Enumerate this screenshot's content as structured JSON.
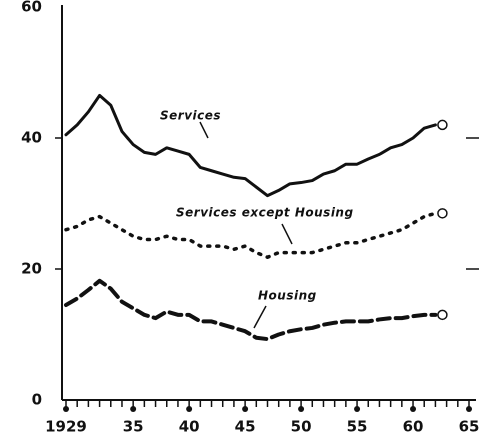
{
  "chart_data": {
    "type": "line",
    "x": [
      1929,
      1930,
      1931,
      1932,
      1933,
      1934,
      1935,
      1936,
      1937,
      1938,
      1939,
      1940,
      1941,
      1942,
      1943,
      1944,
      1945,
      1946,
      1947,
      1948,
      1949,
      1950,
      1951,
      1952,
      1953,
      1954,
      1955,
      1956,
      1957,
      1958,
      1959,
      1960,
      1961,
      1962
    ],
    "series": [
      {
        "name": "Services",
        "color": "#111111",
        "style": "solid",
        "values": [
          40.5,
          42,
          44,
          46.5,
          45,
          41,
          39,
          37.8,
          37.5,
          38.5,
          38,
          37.5,
          35.5,
          35,
          34.5,
          34,
          33.8,
          32.5,
          31.2,
          32,
          33,
          33.2,
          33.5,
          34.5,
          35,
          36,
          36,
          36.8,
          37.5,
          38.5,
          39,
          40,
          41.5,
          42
        ]
      },
      {
        "name": "Services except Housing",
        "color": "#111111",
        "style": "dotted",
        "values": [
          26,
          26.5,
          27.5,
          28,
          27,
          26,
          25,
          24.5,
          24.5,
          25,
          24.5,
          24.5,
          23.5,
          23.5,
          23.5,
          23,
          23.5,
          22.5,
          21.8,
          22.5,
          22.5,
          22.5,
          22.5,
          23,
          23.5,
          24,
          24,
          24.5,
          25,
          25.5,
          26,
          27,
          28,
          28.5
        ]
      },
      {
        "name": "Housing",
        "color": "#111111",
        "style": "dashed",
        "values": [
          14.5,
          15.5,
          16.8,
          18.2,
          17,
          15,
          14,
          13,
          12.5,
          13.5,
          13,
          13,
          12,
          12,
          11.5,
          11,
          10.5,
          9.5,
          9.3,
          10,
          10.5,
          10.8,
          11,
          11.5,
          11.8,
          12,
          12,
          12,
          12.3,
          12.5,
          12.5,
          12.8,
          13,
          13
        ]
      }
    ],
    "xlim": [
      1929,
      1965
    ],
    "xticks": [
      1929,
      {
        "value": 1935,
        "label": "35"
      },
      {
        "value": 1940,
        "label": "40"
      },
      {
        "value": 1945,
        "label": "45"
      },
      {
        "value": 1950,
        "label": "50"
      },
      {
        "value": 1955,
        "label": "55"
      },
      {
        "value": 1960,
        "label": "60"
      },
      {
        "value": 1965,
        "label": "65"
      }
    ],
    "ylim": [
      0,
      60
    ],
    "yticks": [
      0,
      20,
      40,
      60
    ]
  }
}
